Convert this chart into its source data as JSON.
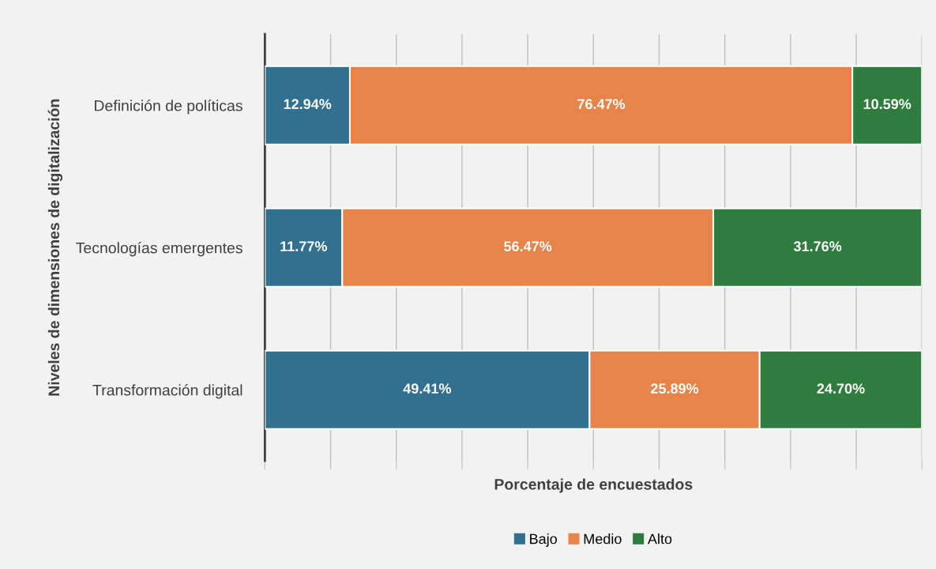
{
  "chart_data": {
    "type": "bar",
    "orientation": "horizontal",
    "stacked": true,
    "xlabel": "Porcentaje de encuestados",
    "ylabel": "Niveles de dimensiones de digitalización",
    "categories": [
      "Definición de políticas",
      "Tecnologías emergentes",
      "Transformación digital"
    ],
    "series": [
      {
        "name": "Bajo",
        "color": "#31708f",
        "values": [
          12.94,
          11.77,
          49.41
        ],
        "value_labels": [
          "12.94%",
          "11.77%",
          "49.41%"
        ]
      },
      {
        "name": "Medio",
        "color": "#e8834a",
        "values": [
          76.47,
          56.47,
          25.89
        ],
        "value_labels": [
          "76.47%",
          "56.47%",
          "25.89%"
        ]
      },
      {
        "name": "Alto",
        "color": "#2e7d3e",
        "values": [
          10.59,
          31.76,
          24.7
        ],
        "value_labels": [
          "10.59%",
          "31.76%",
          "24.70%"
        ]
      }
    ],
    "xlim": [
      0,
      100
    ],
    "xticks": [
      {
        "value": 0,
        "label": null
      },
      {
        "value": 10,
        "label": null
      },
      {
        "value": 20,
        "label": null
      },
      {
        "value": 30,
        "label": null
      },
      {
        "value": 40,
        "label": null
      },
      {
        "value": 50,
        "label": null
      },
      {
        "value": 60,
        "label": null
      },
      {
        "value": 70,
        "label": null
      },
      {
        "value": 80,
        "label": null
      },
      {
        "value": 90,
        "label": null
      },
      {
        "value": 100,
        "label": null
      }
    ],
    "tick_labels": "y",
    "grid": "x",
    "legend": "bottom"
  }
}
